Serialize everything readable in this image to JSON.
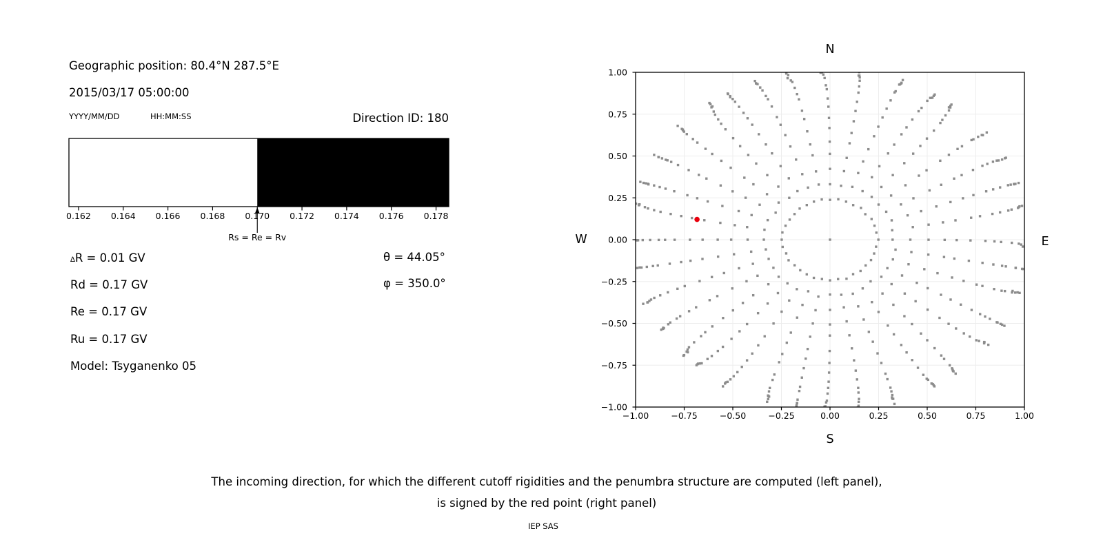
{
  "header": {
    "geo_position": "Geographic position: 80.4°N 287.5°E",
    "datetime": "2015/03/17 05:00:00",
    "date_format_label": "YYYY/MM/DD",
    "time_format_label": "HH:MM:SS",
    "direction_id": "Direction ID: 180"
  },
  "params": {
    "delta_r": {
      "sym": "∆",
      "rest": "R = 0.01 GV"
    },
    "rd": "Rd = 0.17 GV",
    "re": "Re = 0.17 GV",
    "ru": "Ru = 0.17 GV",
    "model": "Model: Tsyganenko 05",
    "theta": "θ = 44.05°",
    "phi": "φ = 350.0°"
  },
  "caption": {
    "line1": "The incoming direction, for which the different cutoff rigidities and the penumbra structure are computed (left panel),",
    "line2": "is signed by the red point (right panel)",
    "credit": "IEP SAS"
  },
  "colors": {
    "allowed": "#ffffff",
    "forbidden": "#000000",
    "grid": "#ededed",
    "axes": "#000000",
    "marker_gray": "#8c8c8c",
    "marker_red": "#e8000d"
  },
  "chart_data": [
    {
      "id": "penumbra-bar",
      "type": "bar",
      "title": "",
      "xlabel": "",
      "x_range": [
        0.16157,
        0.17857
      ],
      "xticks": [
        {
          "v": 0.162,
          "label": "0.162"
        },
        {
          "v": 0.164,
          "label": "0.164"
        },
        {
          "v": 0.166,
          "label": "0.166"
        },
        {
          "v": 0.168,
          "label": "0.168"
        },
        {
          "v": 0.17,
          "label": "0.170"
        },
        {
          "v": 0.172,
          "label": "0.172"
        },
        {
          "v": 0.174,
          "label": "0.174"
        },
        {
          "v": 0.176,
          "label": "0.176"
        },
        {
          "v": 0.178,
          "label": "0.178"
        }
      ],
      "segments": [
        {
          "from": 0.16157,
          "to": 0.17,
          "color": "#ffffff",
          "meaning": "allowed rigidities"
        },
        {
          "from": 0.17,
          "to": 0.17857,
          "color": "#000000",
          "meaning": "forbidden rigidities"
        }
      ],
      "annotation": {
        "text": "Rs = Re = Rv",
        "x": 0.17,
        "arrow": true
      }
    },
    {
      "id": "incoming-directions",
      "type": "scatter",
      "xlim": [
        -1.0,
        1.0
      ],
      "ylim": [
        -1.0,
        1.0
      ],
      "grid": true,
      "compass": {
        "top": "N",
        "bottom": "S",
        "left": "W",
        "right": "E"
      },
      "xticks": [
        {
          "v": -1.0,
          "label": "−1.00"
        },
        {
          "v": -0.75,
          "label": "−0.75"
        },
        {
          "v": -0.5,
          "label": "−0.50"
        },
        {
          "v": -0.25,
          "label": "−0.25"
        },
        {
          "v": 0.0,
          "label": "0.00"
        },
        {
          "v": 0.25,
          "label": "0.25"
        },
        {
          "v": 0.5,
          "label": "0.50"
        },
        {
          "v": 0.75,
          "label": "0.75"
        },
        {
          "v": 1.0,
          "label": "1.00"
        }
      ],
      "yticks": [
        {
          "v": 1.0,
          "label": "1.00"
        },
        {
          "v": 0.75,
          "label": "0.75"
        },
        {
          "v": 0.5,
          "label": "0.50"
        },
        {
          "v": 0.25,
          "label": "0.25"
        },
        {
          "v": 0.0,
          "label": "0.00"
        },
        {
          "v": -0.25,
          "label": "−0.25"
        },
        {
          "v": -0.5,
          "label": "−0.50"
        },
        {
          "v": -0.75,
          "label": "−0.75"
        },
        {
          "v": -1.0,
          "label": "−1.00"
        }
      ],
      "direction_grid": {
        "description": "grid of computed incoming directions: r = sin(zenith), plot angle = azimuth - 180deg",
        "azimuth_step_deg": 10,
        "n_rays": 36,
        "center_dot": true,
        "ring_radius": 0.243,
        "ray_zenith_start_deg": 19.5,
        "ray_zenith_end_deg": 90,
        "dots_per_ray": 14,
        "tail_extra_radii": [
          1.012,
          1.028
        ],
        "radial_jitter": 0.012,
        "bend_max_rad": 0.05
      },
      "red_point": {
        "x": -0.684,
        "y": 0.121,
        "zenith_deg": 44.05,
        "azimuth_deg": 350.0
      }
    }
  ]
}
